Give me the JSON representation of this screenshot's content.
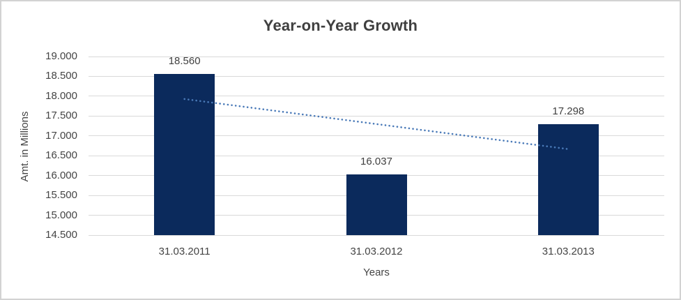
{
  "chart_data": {
    "type": "bar",
    "title": "Year-on-Year Growth",
    "xlabel": "Years",
    "ylabel": "Amt. in Millions",
    "categories": [
      "31.03.2011",
      "31.03.2012",
      "31.03.2013"
    ],
    "values": [
      18560,
      16037,
      17298
    ],
    "value_labels": [
      "18.560",
      "16.037",
      "17.298"
    ],
    "ylim": [
      14500,
      19000
    ],
    "ytick_step": 500,
    "ytick_labels": [
      "19.000",
      "18.500",
      "18.000",
      "17.500",
      "17.000",
      "16.500",
      "16.000",
      "15.500",
      "15.000",
      "14.500"
    ],
    "grid": true,
    "legend": "none",
    "trendline": {
      "kind": "linear",
      "style": "dotted"
    },
    "colors": {
      "bar": "#0b2a5c",
      "trendline": "#4a7ab8",
      "gridline": "#d9d9d9",
      "title_text": "#3f3f3f",
      "axis_text": "#444444",
      "background": "#ffffff",
      "border": "#d2d2d2"
    }
  }
}
